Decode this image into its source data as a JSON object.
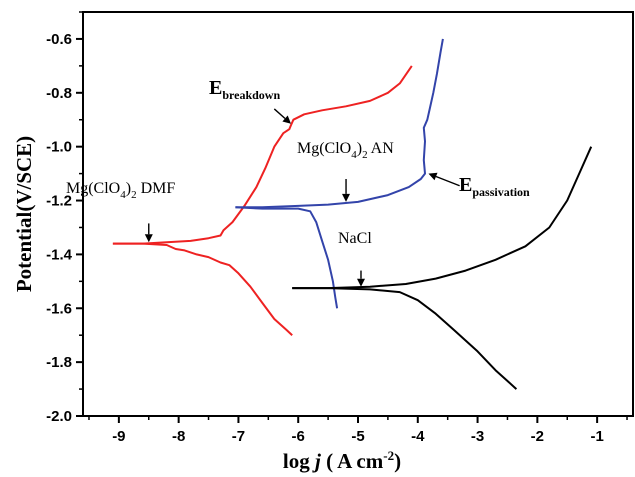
{
  "chart_data": {
    "type": "line",
    "title": "",
    "xlabel_prefix": "log ",
    "xlabel_var": "j",
    "xlabel_unit": " ( A cm",
    "xlabel_exp": "-2",
    "xlabel_close": ")",
    "ylabel": "Potential(V/SCE)",
    "xlim": [
      -9.6,
      -0.4
    ],
    "ylim": [
      -2.0,
      -0.5
    ],
    "xticks": [
      -9,
      -8,
      -7,
      -6,
      -5,
      -4,
      -3,
      -2,
      -1
    ],
    "yticks": [
      -2.0,
      -1.8,
      -1.6,
      -1.4,
      -1.2,
      -1.0,
      -0.8,
      -0.6
    ],
    "grid": false,
    "series": [
      {
        "name": "Mg(ClO4)2 DMF",
        "color": "#ee2222",
        "anodic": [
          [
            -9.1,
            -1.36
          ],
          [
            -8.6,
            -1.36
          ],
          [
            -8.2,
            -1.355
          ],
          [
            -7.8,
            -1.35
          ],
          [
            -7.5,
            -1.34
          ],
          [
            -7.3,
            -1.33
          ],
          [
            -7.25,
            -1.31
          ],
          [
            -7.1,
            -1.28
          ],
          [
            -6.9,
            -1.22
          ],
          [
            -6.7,
            -1.15
          ],
          [
            -6.55,
            -1.08
          ],
          [
            -6.4,
            -1.0
          ],
          [
            -6.25,
            -0.95
          ],
          [
            -6.15,
            -0.935
          ],
          [
            -6.12,
            -0.92
          ],
          [
            -6.08,
            -0.9
          ],
          [
            -5.9,
            -0.88
          ],
          [
            -5.6,
            -0.865
          ],
          [
            -5.2,
            -0.85
          ],
          [
            -4.8,
            -0.83
          ],
          [
            -4.5,
            -0.8
          ],
          [
            -4.3,
            -0.765
          ],
          [
            -4.1,
            -0.7
          ]
        ],
        "cathodic": [
          [
            -9.1,
            -1.36
          ],
          [
            -8.6,
            -1.36
          ],
          [
            -8.2,
            -1.365
          ],
          [
            -8.05,
            -1.38
          ],
          [
            -7.9,
            -1.385
          ],
          [
            -7.7,
            -1.4
          ],
          [
            -7.5,
            -1.41
          ],
          [
            -7.3,
            -1.43
          ],
          [
            -7.15,
            -1.44
          ],
          [
            -7.0,
            -1.47
          ],
          [
            -6.8,
            -1.52
          ],
          [
            -6.6,
            -1.58
          ],
          [
            -6.4,
            -1.64
          ],
          [
            -6.2,
            -1.68
          ],
          [
            -6.1,
            -1.7
          ]
        ]
      },
      {
        "name": "Mg(ClO4)2 AN",
        "color": "#3344aa",
        "anodic": [
          [
            -7.05,
            -1.225
          ],
          [
            -6.6,
            -1.225
          ],
          [
            -6.0,
            -1.22
          ],
          [
            -5.5,
            -1.215
          ],
          [
            -5.0,
            -1.205
          ],
          [
            -4.5,
            -1.18
          ],
          [
            -4.15,
            -1.15
          ],
          [
            -3.95,
            -1.12
          ],
          [
            -3.88,
            -1.1
          ],
          [
            -3.9,
            -1.05
          ],
          [
            -3.88,
            -0.98
          ],
          [
            -3.9,
            -0.93
          ],
          [
            -3.84,
            -0.9
          ],
          [
            -3.8,
            -0.86
          ],
          [
            -3.74,
            -0.8
          ],
          [
            -3.68,
            -0.73
          ],
          [
            -3.62,
            -0.65
          ],
          [
            -3.58,
            -0.6
          ]
        ],
        "cathodic": [
          [
            -7.05,
            -1.225
          ],
          [
            -6.6,
            -1.23
          ],
          [
            -6.0,
            -1.23
          ],
          [
            -5.8,
            -1.24
          ],
          [
            -5.7,
            -1.28
          ],
          [
            -5.6,
            -1.35
          ],
          [
            -5.5,
            -1.42
          ],
          [
            -5.42,
            -1.5
          ],
          [
            -5.38,
            -1.56
          ],
          [
            -5.35,
            -1.6
          ]
        ]
      },
      {
        "name": "NaCl",
        "color": "#000000",
        "anodic": [
          [
            -6.1,
            -1.525
          ],
          [
            -5.5,
            -1.525
          ],
          [
            -4.8,
            -1.52
          ],
          [
            -4.2,
            -1.51
          ],
          [
            -3.7,
            -1.49
          ],
          [
            -3.2,
            -1.46
          ],
          [
            -2.7,
            -1.42
          ],
          [
            -2.2,
            -1.37
          ],
          [
            -1.8,
            -1.3
          ],
          [
            -1.5,
            -1.2
          ],
          [
            -1.3,
            -1.1
          ],
          [
            -1.1,
            -1.0
          ]
        ],
        "cathodic": [
          [
            -6.1,
            -1.525
          ],
          [
            -5.5,
            -1.525
          ],
          [
            -4.8,
            -1.53
          ],
          [
            -4.3,
            -1.54
          ],
          [
            -4.0,
            -1.57
          ],
          [
            -3.7,
            -1.62
          ],
          [
            -3.4,
            -1.68
          ],
          [
            -3.0,
            -1.76
          ],
          [
            -2.7,
            -1.83
          ],
          [
            -2.5,
            -1.87
          ],
          [
            -2.35,
            -1.9
          ]
        ]
      }
    ],
    "annotations": [
      {
        "id": "dmf",
        "base": "Mg(ClO",
        "sub1": "4",
        "mid": ")",
        "sub2": "2",
        "tail": " DMF",
        "arrow_from": [
          -8.5,
          -1.285
        ],
        "arrow_to": [
          -8.5,
          -1.355
        ]
      },
      {
        "id": "an",
        "base": "Mg(ClO",
        "sub1": "4",
        "mid": ")",
        "sub2": "2",
        "tail": " AN",
        "arrow_from": [
          -5.2,
          -1.12
        ],
        "arrow_to": [
          -5.2,
          -1.205
        ]
      },
      {
        "id": "nacl",
        "base": "NaCl",
        "arrow_from": [
          -4.95,
          -1.46
        ],
        "arrow_to": [
          -4.95,
          -1.52
        ]
      },
      {
        "id": "ebreak",
        "base": "E",
        "sub1": "breakdown",
        "arrow_from": [
          -6.4,
          -0.86
        ],
        "arrow_to": [
          -6.12,
          -0.915
        ]
      },
      {
        "id": "epass",
        "base": "E",
        "sub1": "passivation",
        "arrow_from": [
          -3.3,
          -1.145
        ],
        "arrow_to": [
          -3.82,
          -1.1
        ]
      }
    ]
  }
}
